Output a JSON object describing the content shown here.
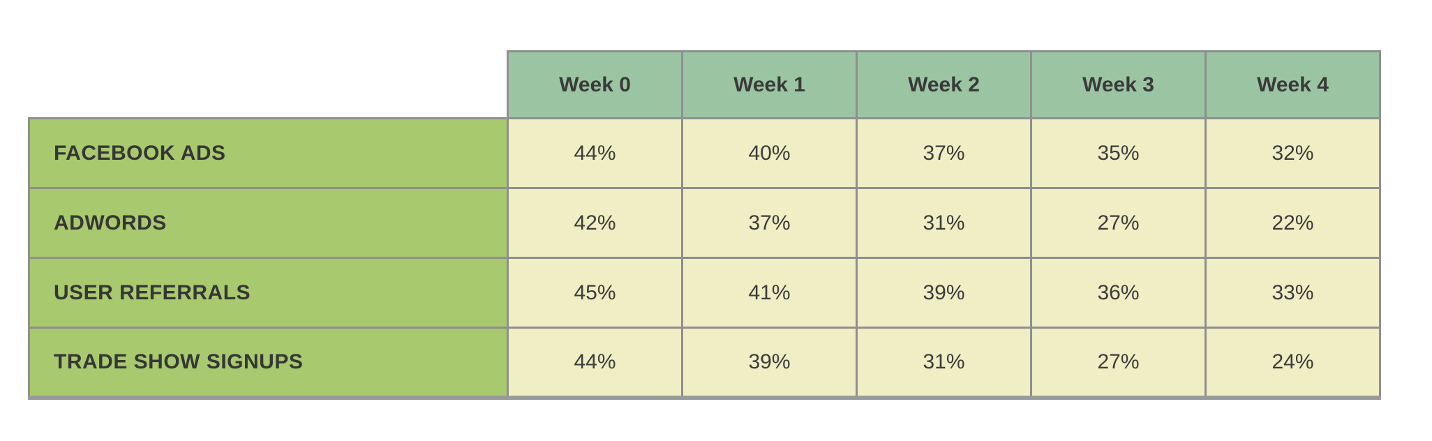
{
  "chart_data": {
    "type": "table",
    "title": "",
    "columns": [
      "Week 0",
      "Week 1",
      "Week 2",
      "Week 3",
      "Week 4"
    ],
    "rows": [
      {
        "label": "FACEBOOK ADS",
        "values": [
          "44%",
          "40%",
          "37%",
          "35%",
          "32%"
        ]
      },
      {
        "label": "ADWORDS",
        "values": [
          "42%",
          "37%",
          "31%",
          "27%",
          "22%"
        ]
      },
      {
        "label": "USER REFERRALS",
        "values": [
          "45%",
          "41%",
          "39%",
          "36%",
          "33%"
        ]
      },
      {
        "label": "TRADE SHOW SIGNUPS",
        "values": [
          "44%",
          "39%",
          "31%",
          "27%",
          "24%"
        ]
      }
    ],
    "layout": {
      "legend": "none",
      "grid": "on"
    },
    "colors": {
      "header_bg": "#9bc5a2",
      "row_label_bg": "#a8c96e",
      "cell_bg": "#efeec4",
      "border": "#8f8f8f",
      "text": "#3a3a3a",
      "background": "#ffffff"
    }
  }
}
